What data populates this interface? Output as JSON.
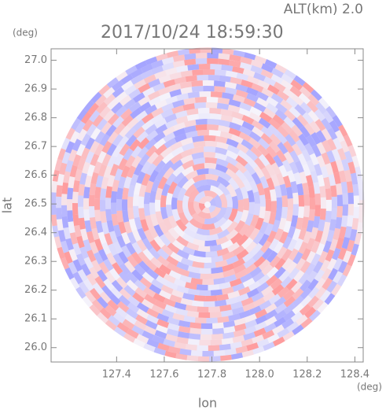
{
  "chart_data": {
    "type": "radar-field",
    "title": "2017/10/24 18:59:30",
    "subtitle": "ALT(km) 2.0",
    "x_label": "lon",
    "y_label": "lat",
    "x_unit": "(deg)",
    "y_unit": "(deg)",
    "xlim": [
      127.125,
      128.435
    ],
    "ylim": [
      25.95,
      27.04
    ],
    "xticks": [
      127.4,
      127.6,
      127.8,
      {
        "value": 128,
        "label": "128.0"
      },
      128.2,
      128.4
    ],
    "yticks": [
      {
        "value": 26,
        "label": "26.0"
      },
      26.1,
      26.2,
      26.3,
      26.4,
      26.5,
      26.6,
      26.7,
      26.8,
      26.9,
      {
        "value": 27,
        "label": "27.0"
      }
    ]
  }
}
